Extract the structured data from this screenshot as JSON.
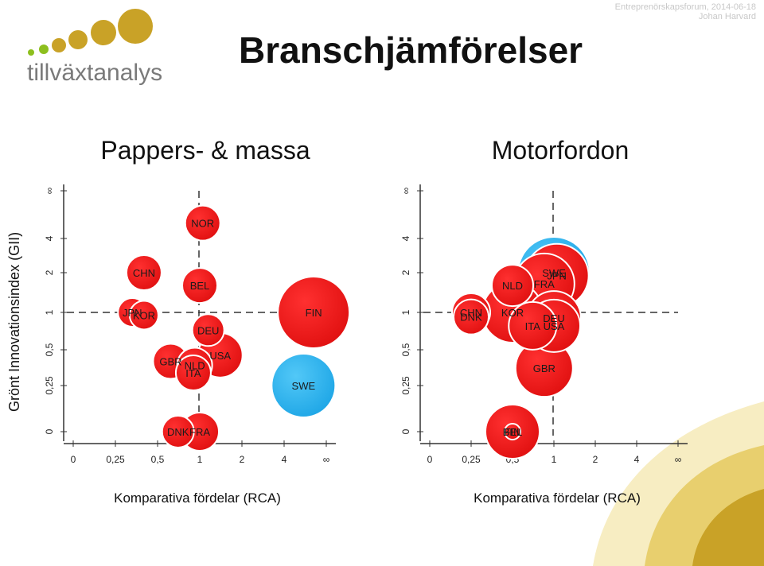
{
  "header": {
    "title": "Branschjämförelser",
    "event_line": "Entreprenörskapsforum, 2014-06-18",
    "author_line": "Johan Harvard",
    "logo_text": "tillväxtanalys"
  },
  "y_axis_title": "Grönt Innovationsindex (GII)",
  "colors": {
    "bubble_red": "#f01a1a",
    "bubble_blue": "#29b3ee",
    "gold": "#c9a227",
    "logo_green": "#8dbf1e",
    "logo_gray": "#7a7a7a"
  },
  "chart_data": [
    {
      "type": "scatter",
      "title": "Pappers- & massa",
      "xlabel": "Komparativa fördelar (RCA)",
      "ylabel": "Grönt Innovationsindex (GII)",
      "x_ticks": [
        "0",
        "0,25",
        "0,5",
        "1",
        "2",
        "4",
        "∞"
      ],
      "y_ticks": [
        "0",
        "0,25",
        "0,5",
        "1",
        "2",
        "4",
        "∞"
      ],
      "scale": "log2, 0 and ∞ as end points; reference lines at 1",
      "series": [
        {
          "points": [
            {
              "label": "NOR",
              "x": 1.05,
              "y": 5.0,
              "color": "red"
            },
            {
              "label": "CHN",
              "x": 0.4,
              "y": 2.0,
              "color": "red"
            },
            {
              "label": "BEL",
              "x": 1.0,
              "y": 1.6,
              "color": "red"
            },
            {
              "label": "JPN",
              "x": 0.33,
              "y": 1.0,
              "color": "red"
            },
            {
              "label": "KOR",
              "x": 0.4,
              "y": 0.95,
              "color": "red"
            },
            {
              "label": "DEU",
              "x": 1.15,
              "y": 0.72,
              "color": "red"
            },
            {
              "label": "USA",
              "x": 1.4,
              "y": 0.45,
              "color": "red"
            },
            {
              "label": "GBR",
              "x": 0.62,
              "y": 0.4,
              "color": "red"
            },
            {
              "label": "NLD",
              "x": 0.92,
              "y": 0.37,
              "color": "red"
            },
            {
              "label": "ITA",
              "x": 0.9,
              "y": 0.32,
              "color": "red"
            },
            {
              "label": "FIN",
              "x": 6.5,
              "y": 1.0,
              "color": "red"
            },
            {
              "label": "SWE",
              "x": 5.5,
              "y": 0.25,
              "color": "blue"
            },
            {
              "label": "FRA",
              "x": 1.0,
              "y": 0.06,
              "color": "red"
            },
            {
              "label": "DNK",
              "x": 0.7,
              "y": 0.0,
              "color": "red"
            }
          ]
        }
      ]
    },
    {
      "type": "scatter",
      "title": "Motorfordon",
      "xlabel": "Komparativa fördelar (RCA)",
      "ylabel": "",
      "x_ticks": [
        "0",
        "0,25",
        "0,5",
        "1",
        "2",
        "4",
        "∞"
      ],
      "y_ticks": [
        "0",
        "0,25",
        "0,5",
        "1",
        "2",
        "4",
        "∞"
      ],
      "scale": "log2, 0 and ∞ as end points; reference lines at 1",
      "series": [
        {
          "points": [
            {
              "label": "SWE",
              "x": 1.0,
              "y": 2.0,
              "color": "blue"
            },
            {
              "label": "JPN",
              "x": 1.05,
              "y": 1.9,
              "color": "red"
            },
            {
              "label": "FRA",
              "x": 0.85,
              "y": 1.65,
              "color": "red"
            },
            {
              "label": "NLD",
              "x": 0.5,
              "y": 1.6,
              "color": "red"
            },
            {
              "label": "CHN",
              "x": 0.25,
              "y": 1.0,
              "color": "red"
            },
            {
              "label": "DNK",
              "x": 0.25,
              "y": 0.92,
              "color": "red"
            },
            {
              "label": "KOR",
              "x": 0.5,
              "y": 1.0,
              "color": "red"
            },
            {
              "label": "DEU",
              "x": 1.0,
              "y": 0.9,
              "color": "red"
            },
            {
              "label": "ITA",
              "x": 0.7,
              "y": 0.78,
              "color": "red"
            },
            {
              "label": "USA",
              "x": 1.0,
              "y": 0.78,
              "color": "red"
            },
            {
              "label": "GBR",
              "x": 0.85,
              "y": 0.35,
              "color": "red"
            },
            {
              "label": "FIN",
              "x": 0.5,
              "y": 0.08,
              "color": "red"
            },
            {
              "label": "BEL",
              "x": 0.5,
              "y": 0.0,
              "color": "red"
            }
          ]
        }
      ]
    }
  ]
}
